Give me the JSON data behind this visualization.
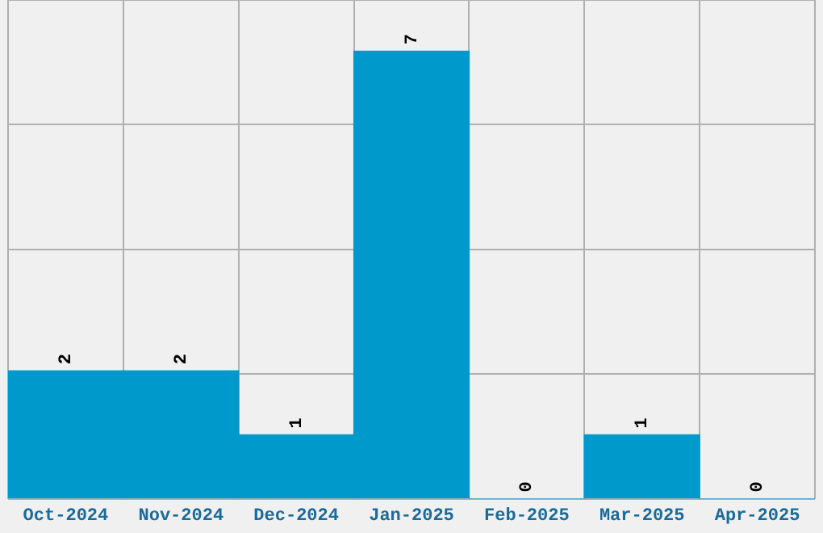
{
  "chart_data": {
    "type": "bar",
    "categories": [
      "Oct-2024",
      "Nov-2024",
      "Dec-2024",
      "Jan-2025",
      "Feb-2025",
      "Mar-2025",
      "Apr-2025"
    ],
    "values": [
      2,
      2,
      1,
      7,
      0,
      1,
      0
    ],
    "color": "#0099cc",
    "ylim": [
      0,
      7.8
    ],
    "yticks": [
      {
        "value": 0,
        "label": null
      },
      {
        "value": 1.95,
        "label": null
      },
      {
        "value": 3.9,
        "label": null
      },
      {
        "value": 5.85,
        "label": null
      },
      {
        "value": 7.8,
        "label": null
      }
    ],
    "grid": true,
    "data_labels": true,
    "tick_labels": "x"
  }
}
